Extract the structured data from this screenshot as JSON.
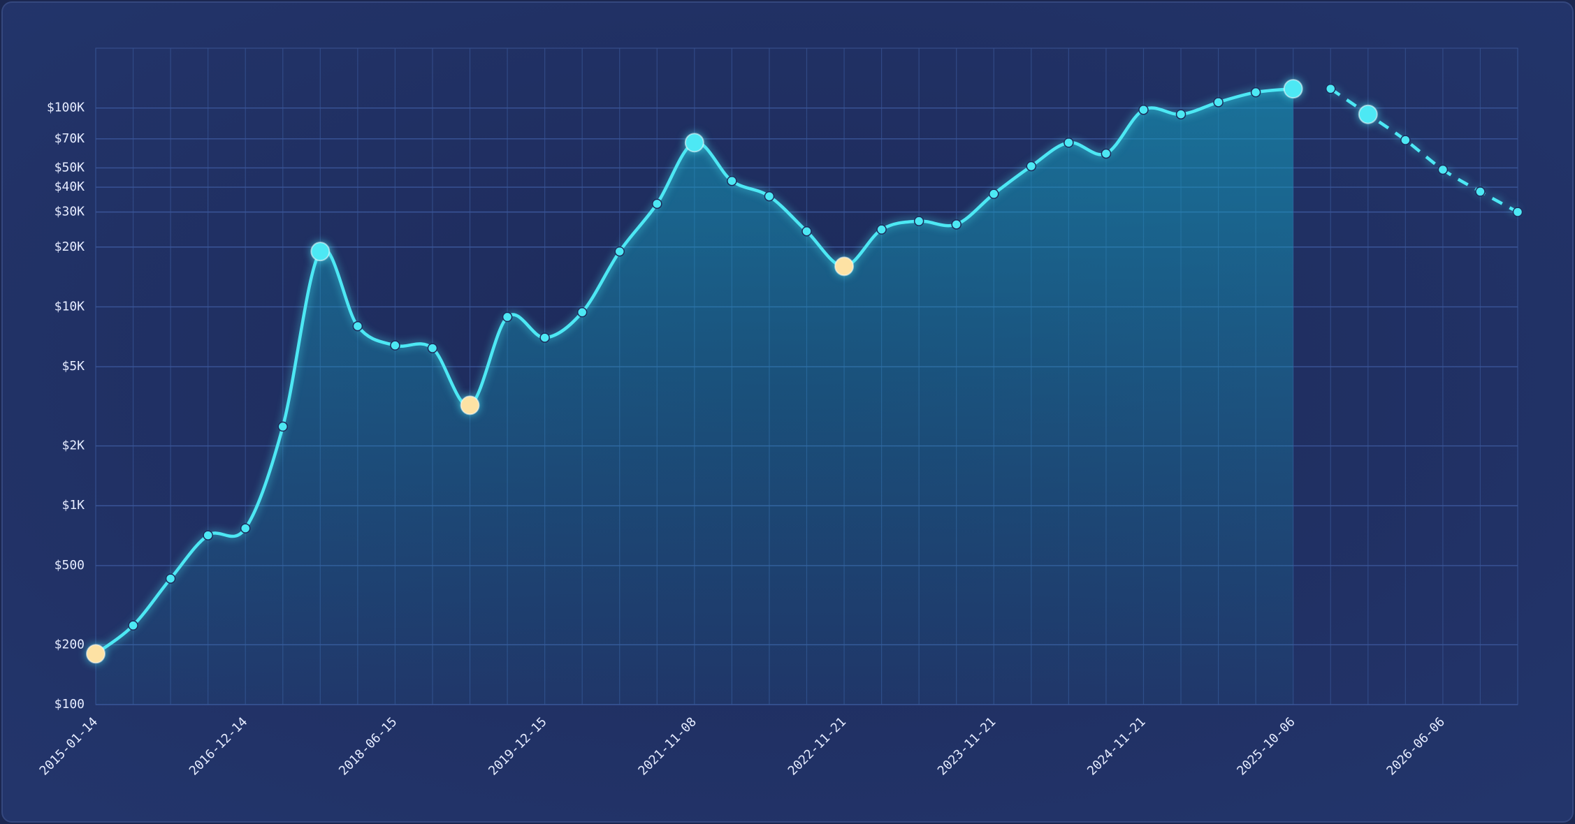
{
  "chart_data": {
    "type": "line",
    "log_scale": true,
    "grid": true,
    "categories": [
      "2015-01-14",
      null,
      null,
      null,
      "2016-12-14",
      null,
      null,
      null,
      "2018-06-15",
      null,
      null,
      null,
      "2019-12-15",
      null,
      null,
      null,
      "2021-11-08",
      null,
      null,
      null,
      "2022-11-21",
      null,
      null,
      null,
      "2023-11-21",
      null,
      null,
      null,
      "2024-11-21",
      null,
      null,
      null,
      "2025-10-06",
      null,
      null,
      null,
      "2026-06-06",
      null,
      null
    ],
    "series": [
      {
        "color": "#4de8f4",
        "dashed": false,
        "fill": true,
        "values": [
          180,
          250,
          430,
          710,
          770,
          2500,
          19000,
          8000,
          6400,
          6200,
          3200,
          8900,
          7000,
          9400,
          19000,
          33000,
          67000,
          43000,
          36000,
          24000,
          16000,
          24500,
          27000,
          26000,
          37000,
          51000,
          67000,
          59000,
          98000,
          93000,
          107000,
          120000,
          125000,
          null,
          null,
          null,
          null,
          null,
          null
        ]
      },
      {
        "color": "#4de8f4",
        "dashed": true,
        "fill": false,
        "values": [
          null,
          null,
          null,
          null,
          null,
          null,
          null,
          null,
          null,
          null,
          null,
          null,
          null,
          null,
          null,
          null,
          null,
          null,
          null,
          null,
          null,
          null,
          null,
          null,
          null,
          null,
          null,
          null,
          null,
          null,
          null,
          null,
          null,
          125000,
          93000,
          69000,
          49000,
          38000,
          30000
        ]
      }
    ],
    "highlights": [
      {
        "series": 0,
        "index": 0,
        "color": "#fde2a4"
      },
      {
        "series": 0,
        "index": 6,
        "color": "#4de8f4"
      },
      {
        "series": 0,
        "index": 10,
        "color": "#fde2a4"
      },
      {
        "series": 0,
        "index": 16,
        "color": "#4de8f4"
      },
      {
        "series": 0,
        "index": 20,
        "color": "#fde2a4"
      },
      {
        "series": 0,
        "index": 32,
        "color": "#4de8f4"
      },
      {
        "series": 1,
        "index": 34,
        "color": "#4de8f4"
      }
    ],
    "ylim": [
      100,
      200000
    ],
    "yticks": [
      {
        "value": 100,
        "label": "$100"
      },
      {
        "value": 200,
        "label": "$200"
      },
      {
        "value": 500,
        "label": "$500"
      },
      {
        "value": 1000,
        "label": "$1K"
      },
      {
        "value": 2000,
        "label": "$2K"
      },
      {
        "value": 5000,
        "label": "$5K"
      },
      {
        "value": 10000,
        "label": "$10K"
      },
      {
        "value": 20000,
        "label": "$20K"
      },
      {
        "value": 30000,
        "label": "$30K"
      },
      {
        "value": 40000,
        "label": "$40K"
      },
      {
        "value": 50000,
        "label": "$50K"
      },
      {
        "value": 70000,
        "label": "$70K"
      },
      {
        "value": 100000,
        "label": "$100K"
      }
    ]
  }
}
